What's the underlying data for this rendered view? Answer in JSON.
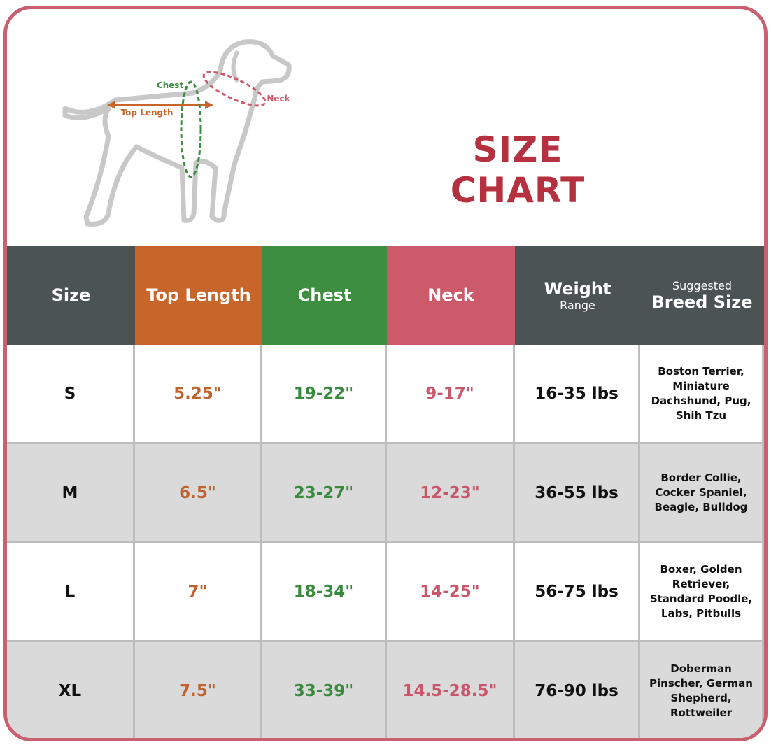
{
  "header": {
    "title": "SIZE CHART"
  },
  "diagram": {
    "chest_label": "Chest",
    "top_length_label": "Top Length",
    "neck_label": "Neck"
  },
  "table": {
    "headers": [
      {
        "main": "Size"
      },
      {
        "main": "Top Length"
      },
      {
        "main": "Chest"
      },
      {
        "main": "Neck"
      },
      {
        "main": "Weight",
        "sub": "Range"
      },
      {
        "sub": "Suggested",
        "main": "Breed Size"
      }
    ],
    "rows": [
      [
        "S",
        "5.25\"",
        "19-22\"",
        "9-17\"",
        "16-35 lbs",
        "Boston Terrier, Miniature Dachshund, Pug, Shih Tzu"
      ],
      [
        "M",
        "6.5\"",
        "23-27\"",
        "12-23\"",
        "36-55 lbs",
        "Border Collie, Cocker Spaniel, Beagle, Bulldog"
      ],
      [
        "L",
        "7\"",
        "18-34\"",
        "14-25\"",
        "56-75 lbs",
        "Boxer, Golden Retriever, Standard Poodle, Labs, Pitbulls"
      ],
      [
        "XL",
        "7.5\"",
        "33-39\"",
        "14.5-28.5\"",
        "76-90 lbs",
        "Doberman Pinscher, German Shepherd, Rottweiler"
      ]
    ]
  }
}
